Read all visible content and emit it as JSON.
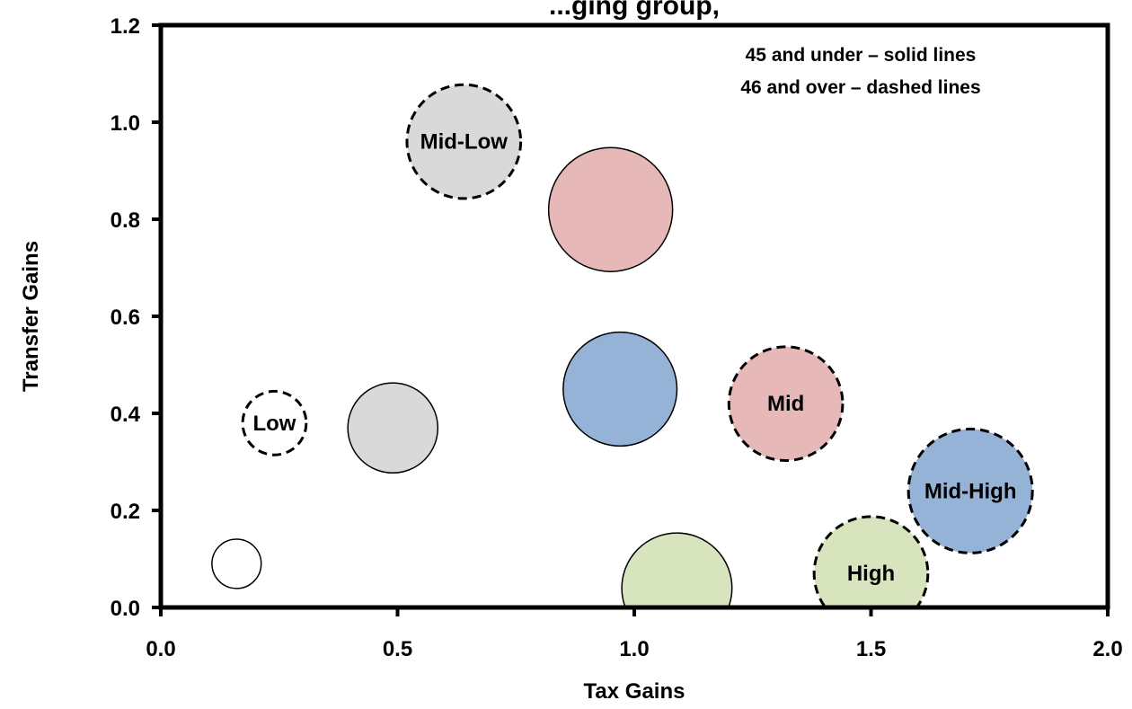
{
  "chart_data": {
    "type": "scatter",
    "title": "...ging group,",
    "xlabel": "Tax Gains",
    "ylabel": "Transfer Gains",
    "xlim": [
      0.0,
      2.0
    ],
    "ylim": [
      0.0,
      1.2
    ],
    "x_ticks": [
      "0.0",
      "0.5",
      "1.0",
      "1.5",
      "2.0"
    ],
    "y_ticks": [
      "0.0",
      "0.2",
      "0.4",
      "0.6",
      "0.8",
      "1.0",
      "1.2"
    ],
    "grid": false,
    "annotations": [
      "45 and under – solid lines",
      "46 and over – dashed lines"
    ],
    "bubbles": [
      {
        "label": "",
        "x": 0.16,
        "y": 0.09,
        "size": 0.3,
        "color": "#ffffff",
        "line": "solid"
      },
      {
        "label": "Low",
        "x": 0.24,
        "y": 0.38,
        "size": 0.5,
        "color": "#ffffff",
        "line": "dashed"
      },
      {
        "label": "",
        "x": 0.49,
        "y": 0.37,
        "size": 1.0,
        "color": "#d9d9d9",
        "line": "solid"
      },
      {
        "label": "Mid-Low",
        "x": 0.64,
        "y": 0.96,
        "size": 1.6,
        "color": "#d9d9d9",
        "line": "dashed"
      },
      {
        "label": "",
        "x": 0.95,
        "y": 0.82,
        "size": 1.9,
        "color": "#e6b9b8",
        "line": "solid"
      },
      {
        "label": "",
        "x": 0.97,
        "y": 0.45,
        "size": 1.6,
        "color": "#95b3d7",
        "line": "solid"
      },
      {
        "label": "Mid",
        "x": 1.32,
        "y": 0.42,
        "size": 1.6,
        "color": "#e6b9b8",
        "line": "dashed"
      },
      {
        "label": "",
        "x": 1.09,
        "y": 0.04,
        "size": 1.5,
        "color": "#d7e4bd",
        "line": "solid"
      },
      {
        "label": "High",
        "x": 1.5,
        "y": 0.07,
        "size": 1.6,
        "color": "#d7e4bd",
        "line": "dashed"
      },
      {
        "label": "Mid-High",
        "x": 1.71,
        "y": 0.24,
        "size": 1.9,
        "color": "#95b3d7",
        "line": "dashed"
      }
    ]
  }
}
